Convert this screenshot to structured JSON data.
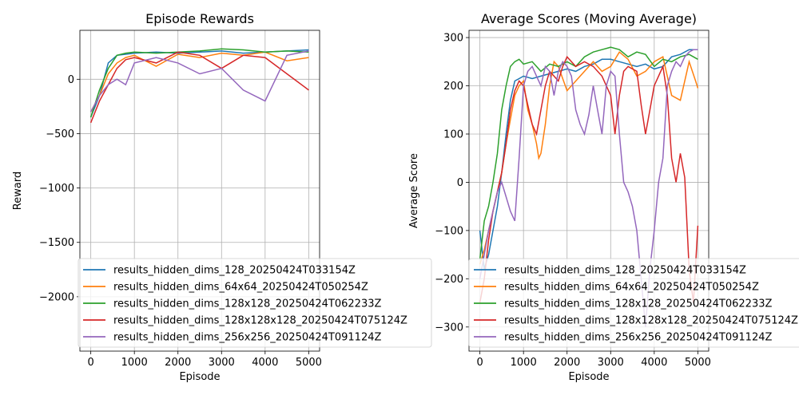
{
  "chart_data": [
    {
      "type": "line",
      "title": "Episode Rewards",
      "xlabel": "Episode",
      "ylabel": "Reward",
      "xlim": [
        -250,
        5250
      ],
      "ylim": [
        -2500,
        450
      ],
      "xticks": [
        0,
        1000,
        2000,
        3000,
        4000,
        5000
      ],
      "xtick_labels": [
        "0",
        "1000",
        "2000",
        "3000",
        "4000",
        "5000"
      ],
      "yticks": [
        -2000,
        -1500,
        -1000,
        -500,
        0
      ],
      "ytick_labels": [
        "−2000",
        "−1500",
        "−1000",
        "−500",
        "0"
      ],
      "grid": true,
      "legend": "lower-left",
      "series": [
        {
          "name": "results_hidden_dims_128_20250424T033154Z",
          "color": "#1f77b4",
          "x": [
            0,
            200,
            400,
            600,
            800,
            1000,
            1500,
            2000,
            2500,
            3000,
            3500,
            4000,
            4500,
            5000
          ],
          "y": [
            -350,
            -150,
            150,
            220,
            230,
            240,
            250,
            240,
            250,
            260,
            240,
            250,
            260,
            270
          ]
        },
        {
          "name": "results_hidden_dims_64x64_20250424T050254Z",
          "color": "#ff7f0e",
          "x": [
            0,
            200,
            400,
            600,
            800,
            1000,
            1500,
            2000,
            2500,
            3000,
            3500,
            4000,
            4500,
            5000
          ],
          "y": [
            -300,
            -150,
            50,
            150,
            200,
            220,
            120,
            230,
            200,
            240,
            220,
            250,
            170,
            200
          ]
        },
        {
          "name": "results_hidden_dims_128x128_20250424T062233Z",
          "color": "#2ca02c",
          "x": [
            0,
            200,
            400,
            600,
            800,
            1000,
            1500,
            2000,
            2500,
            3000,
            3500,
            4000,
            4500,
            5000
          ],
          "y": [
            -350,
            -100,
            100,
            220,
            240,
            250,
            240,
            250,
            260,
            280,
            270,
            250,
            260,
            250
          ]
        },
        {
          "name": "results_hidden_dims_128x128x128_20250424T075124Z",
          "color": "#d62728",
          "x": [
            0,
            200,
            400,
            600,
            800,
            1000,
            1500,
            2000,
            2500,
            3000,
            3500,
            4000,
            4500,
            5000
          ],
          "y": [
            -400,
            -200,
            -50,
            100,
            180,
            200,
            150,
            250,
            220,
            100,
            220,
            200,
            50,
            -100
          ]
        },
        {
          "name": "results_hidden_dims_256x256_20250424T091124Z",
          "color": "#9467bd",
          "x": [
            0,
            200,
            400,
            600,
            800,
            1000,
            1500,
            2000,
            2500,
            3000,
            3500,
            4000,
            4500,
            5000
          ],
          "y": [
            -300,
            -150,
            -50,
            0,
            -50,
            150,
            200,
            150,
            50,
            100,
            -100,
            -200,
            220,
            260
          ]
        }
      ]
    },
    {
      "type": "line",
      "title": "Average Scores (Moving Average)",
      "xlabel": "Episode",
      "ylabel": "Average Score",
      "xlim": [
        -250,
        5250
      ],
      "ylim": [
        -350,
        315
      ],
      "xticks": [
        0,
        1000,
        2000,
        3000,
        4000,
        5000
      ],
      "xtick_labels": [
        "0",
        "1000",
        "2000",
        "3000",
        "4000",
        "5000"
      ],
      "yticks": [
        -300,
        -200,
        -100,
        0,
        100,
        200,
        300
      ],
      "ytick_labels": [
        "−300",
        "−200",
        "−100",
        "0",
        "100",
        "200",
        "300"
      ],
      "grid": true,
      "legend": "lower-left",
      "series": [
        {
          "name": "results_hidden_dims_128_20250424T033154Z",
          "color": "#1f77b4",
          "x": [
            0,
            100,
            200,
            300,
            400,
            500,
            600,
            700,
            800,
            900,
            1000,
            1200,
            1400,
            1600,
            1800,
            2000,
            2200,
            2400,
            2600,
            2800,
            3000,
            3200,
            3400,
            3600,
            3800,
            4000,
            4200,
            4400,
            4600,
            4800,
            5000
          ],
          "y": [
            -100,
            -180,
            -150,
            -100,
            -50,
            20,
            100,
            170,
            210,
            215,
            220,
            215,
            220,
            225,
            230,
            235,
            230,
            240,
            245,
            255,
            255,
            250,
            245,
            240,
            245,
            235,
            240,
            260,
            265,
            275,
            275
          ]
        },
        {
          "name": "results_hidden_dims_64x64_20250424T050254Z",
          "color": "#ff7f0e",
          "x": [
            0,
            100,
            200,
            300,
            400,
            500,
            600,
            700,
            800,
            900,
            1000,
            1100,
            1200,
            1300,
            1350,
            1400,
            1500,
            1600,
            1700,
            1800,
            2000,
            2200,
            2400,
            2600,
            2800,
            3000,
            3200,
            3400,
            3600,
            3800,
            4000,
            4200,
            4400,
            4600,
            4800,
            4950,
            5000
          ],
          "y": [
            -170,
            -140,
            -100,
            -60,
            -20,
            20,
            80,
            130,
            180,
            200,
            210,
            150,
            120,
            80,
            50,
            60,
            120,
            200,
            250,
            240,
            190,
            210,
            230,
            250,
            230,
            240,
            270,
            255,
            220,
            230,
            250,
            260,
            180,
            170,
            250,
            210,
            195
          ]
        },
        {
          "name": "results_hidden_dims_128x128_20250424T062233Z",
          "color": "#2ca02c",
          "x": [
            0,
            100,
            200,
            300,
            400,
            500,
            600,
            700,
            800,
            900,
            1000,
            1200,
            1400,
            1600,
            1800,
            2000,
            2200,
            2400,
            2600,
            2800,
            3000,
            3200,
            3400,
            3600,
            3800,
            4000,
            4200,
            4400,
            4600,
            4800,
            5000
          ],
          "y": [
            -160,
            -80,
            -50,
            0,
            60,
            150,
            200,
            240,
            250,
            255,
            245,
            250,
            230,
            245,
            240,
            250,
            240,
            260,
            270,
            275,
            280,
            275,
            260,
            270,
            265,
            240,
            255,
            250,
            260,
            265,
            255
          ]
        },
        {
          "name": "results_hidden_dims_128x128x128_20250424T075124Z",
          "color": "#d62728",
          "x": [
            0,
            100,
            200,
            300,
            400,
            500,
            600,
            700,
            800,
            900,
            1000,
            1100,
            1200,
            1300,
            1400,
            1500,
            1600,
            1700,
            1800,
            1900,
            2000,
            2200,
            2400,
            2600,
            2800,
            3000,
            3100,
            3200,
            3300,
            3400,
            3600,
            3700,
            3800,
            3900,
            4000,
            4200,
            4300,
            4400,
            4500,
            4600,
            4700,
            4800,
            4900,
            5000
          ],
          "y": [
            -250,
            -200,
            -120,
            -60,
            -20,
            20,
            80,
            150,
            190,
            210,
            200,
            160,
            120,
            100,
            150,
            200,
            230,
            220,
            210,
            240,
            260,
            240,
            250,
            240,
            220,
            180,
            100,
            180,
            230,
            240,
            230,
            160,
            100,
            150,
            200,
            240,
            180,
            50,
            0,
            60,
            10,
            -180,
            -250,
            -90
          ]
        },
        {
          "name": "results_hidden_dims_256x256_20250424T091124Z",
          "color": "#9467bd",
          "x": [
            0,
            100,
            200,
            300,
            400,
            500,
            600,
            700,
            800,
            900,
            1000,
            1100,
            1200,
            1300,
            1400,
            1500,
            1600,
            1700,
            1800,
            1900,
            2000,
            2100,
            2200,
            2300,
            2400,
            2500,
            2600,
            2700,
            2800,
            2900,
            3000,
            3100,
            3200,
            3300,
            3400,
            3500,
            3600,
            3700,
            3800,
            3900,
            4000,
            4100,
            4200,
            4300,
            4400,
            4500,
            4600,
            4700,
            4800,
            4900,
            5000
          ],
          "y": [
            -200,
            -150,
            -100,
            -60,
            -20,
            0,
            -30,
            -60,
            -80,
            50,
            200,
            230,
            240,
            220,
            200,
            240,
            230,
            180,
            230,
            250,
            240,
            220,
            150,
            120,
            100,
            140,
            200,
            150,
            100,
            200,
            230,
            220,
            100,
            0,
            -20,
            -50,
            -100,
            -200,
            -300,
            -180,
            -100,
            0,
            50,
            200,
            230,
            250,
            240,
            260,
            270,
            275,
            275
          ]
        }
      ]
    }
  ]
}
